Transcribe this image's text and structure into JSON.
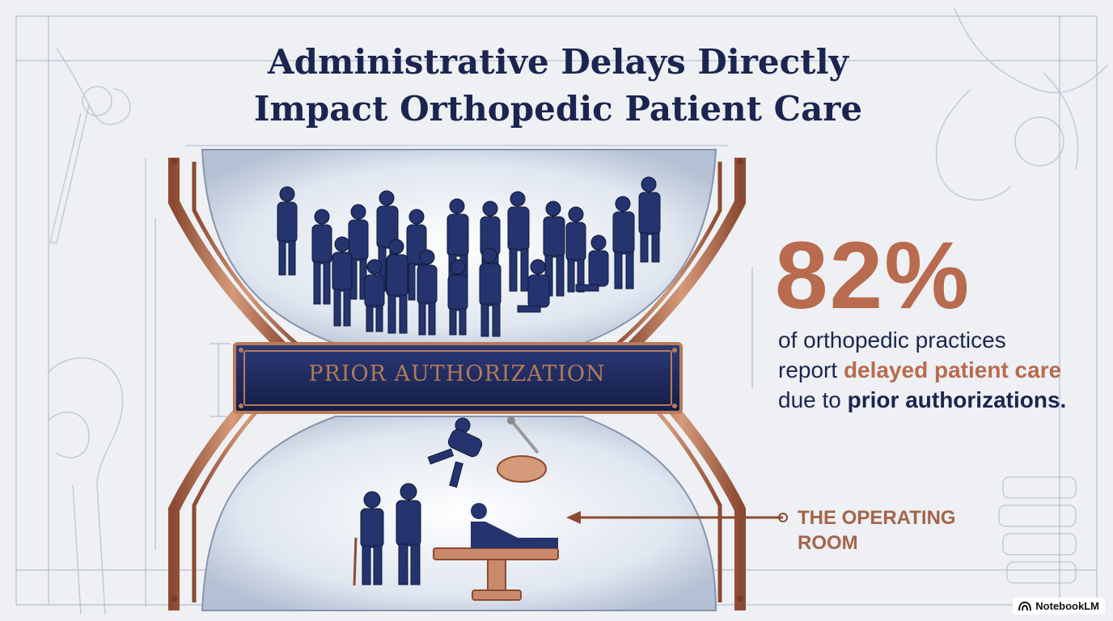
{
  "title": {
    "line1": "Administrative Delays Directly",
    "line2": "Impact Orthopedic Patient Care"
  },
  "stat": {
    "value": "82%",
    "desc_part1": "of orthopedic practices report ",
    "desc_highlight": "delayed patient care",
    "desc_part2": " due to ",
    "desc_bold": "prior authorizations."
  },
  "banner": {
    "label": "PRIOR AUTHORIZATION"
  },
  "operating_room": {
    "line1": "THE OPERATING",
    "line2": "ROOM"
  },
  "badge": {
    "label": "NotebookLM",
    "icon": "notebooklm-logo-icon"
  },
  "colors": {
    "navy": "#1b2550",
    "copper": "#b86b4e",
    "background": "#eef0f4"
  }
}
